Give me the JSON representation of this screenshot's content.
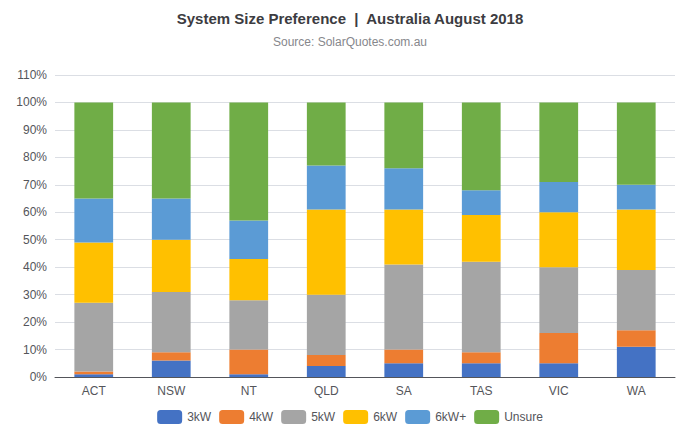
{
  "chart_data": {
    "type": "bar",
    "title": "System Size Preference  |  Australia August 2018",
    "subtitle": "Source: SolarQuotes.com.au",
    "categories": [
      "ACT",
      "NSW",
      "NT",
      "QLD",
      "SA",
      "TAS",
      "VIC",
      "WA"
    ],
    "series": [
      {
        "name": "3kW",
        "color": "#4472C4",
        "values": [
          1,
          6,
          1,
          4,
          5,
          5,
          5,
          11
        ]
      },
      {
        "name": "4kW",
        "color": "#ED7D31",
        "values": [
          1,
          3,
          9,
          4,
          5,
          4,
          11,
          6
        ]
      },
      {
        "name": "5kW",
        "color": "#A5A5A5",
        "values": [
          25,
          22,
          18,
          22,
          31,
          33,
          24,
          22
        ]
      },
      {
        "name": "6kW",
        "color": "#FFC000",
        "values": [
          22,
          19,
          15,
          31,
          20,
          17,
          20,
          22
        ]
      },
      {
        "name": "6kW+",
        "color": "#5B9BD5",
        "values": [
          16,
          15,
          14,
          16,
          15,
          9,
          11,
          9
        ]
      },
      {
        "name": "Unsure",
        "color": "#70AD47",
        "values": [
          35,
          35,
          43,
          23,
          24,
          32,
          29,
          30
        ]
      }
    ],
    "stacked": true,
    "ylim": [
      0,
      110
    ],
    "yticks": [
      {
        "value": 0,
        "label": "0%"
      },
      {
        "value": 10,
        "label": "10%"
      },
      {
        "value": 20,
        "label": "20%"
      },
      {
        "value": 30,
        "label": "30%"
      },
      {
        "value": 40,
        "label": "40%"
      },
      {
        "value": 50,
        "label": "50%"
      },
      {
        "value": 60,
        "label": "60%"
      },
      {
        "value": 70,
        "label": "70%"
      },
      {
        "value": 80,
        "label": "80%"
      },
      {
        "value": 90,
        "label": "90%"
      },
      {
        "value": 100,
        "label": "100%"
      },
      {
        "value": 110,
        "label": "110%"
      }
    ],
    "grid": true,
    "legend": "bottom"
  }
}
